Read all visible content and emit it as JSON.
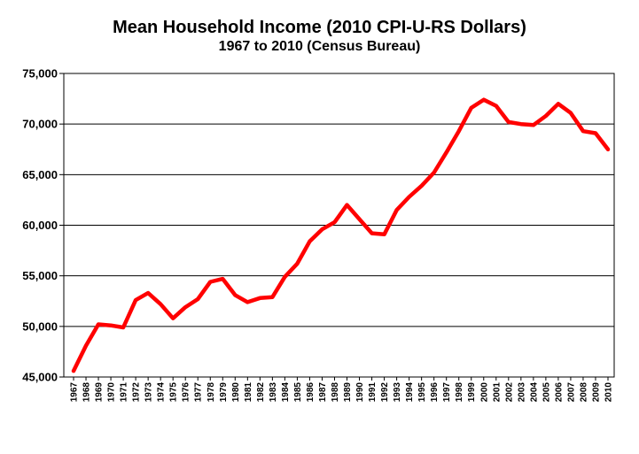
{
  "chart_data": {
    "type": "line",
    "title": "Mean Household Income (2010 CPI-U-RS Dollars)",
    "subtitle": "1967 to 2010 (Census Bureau)",
    "xlabel": "",
    "ylabel": "",
    "ylim": [
      45000,
      75000
    ],
    "yticks": [
      "45,000",
      "50,000",
      "55,000",
      "60,000",
      "65,000",
      "70,000",
      "75,000"
    ],
    "grid": true,
    "line_color": "#ff0000",
    "categories": [
      "1967",
      "1968",
      "1969",
      "1970",
      "1971",
      "1972",
      "1973",
      "1974",
      "1975",
      "1976",
      "1977",
      "1978",
      "1979",
      "1980",
      "1981",
      "1982",
      "1983",
      "1984",
      "1985",
      "1986",
      "1987",
      "1988",
      "1989",
      "1990",
      "1991",
      "1992",
      "1993",
      "1994",
      "1995",
      "1996",
      "1997",
      "1998",
      "1999",
      "2000",
      "2001",
      "2002",
      "2003",
      "2004",
      "2005",
      "2006",
      "2007",
      "2008",
      "2009",
      "2010"
    ],
    "values": [
      45600,
      48100,
      50200,
      50100,
      49900,
      52600,
      53300,
      52200,
      50800,
      51900,
      52700,
      54400,
      54700,
      53100,
      52400,
      52800,
      52900,
      54900,
      56200,
      58400,
      59600,
      60300,
      62000,
      60600,
      59200,
      59100,
      61500,
      62800,
      63900,
      65200,
      67200,
      69300,
      71600,
      72400,
      71800,
      70200,
      70000,
      69900,
      70800,
      72000,
      71100,
      69300,
      69100,
      67500
    ]
  }
}
